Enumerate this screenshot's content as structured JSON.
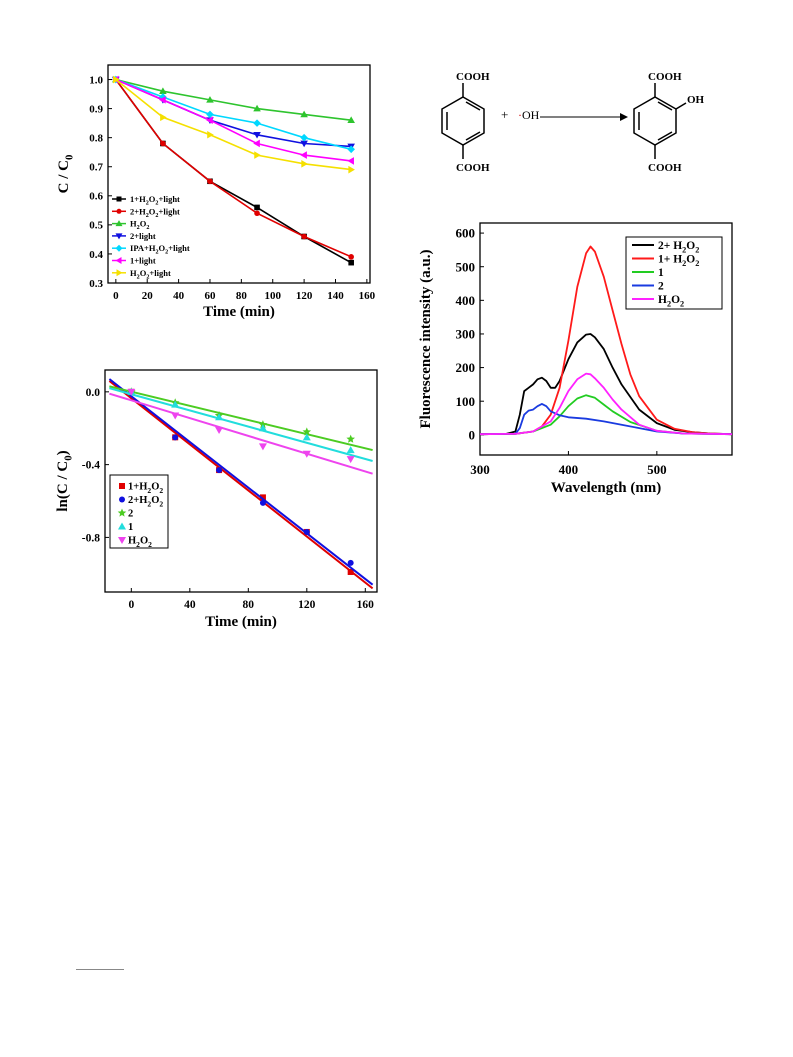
{
  "scheme": {
    "reactant_group_top": "COOH",
    "reactant_group_bottom": "COOH",
    "plus": "+",
    "radical": "·OH",
    "product_group_top": "COOH",
    "product_group_bottom": "COOH",
    "product_substituent": "OH",
    "colors": {
      "text": "#000000",
      "radical_dot": "#d00000"
    }
  },
  "chart_data": [
    {
      "id": "panelA",
      "type": "line",
      "title": "",
      "xlabel": "Time (min)",
      "ylabel": "C / C0",
      "xlim": [
        -5,
        162
      ],
      "ylim": [
        0.3,
        1.05
      ],
      "xticks": [
        0,
        20,
        40,
        60,
        80,
        100,
        120,
        140,
        160
      ],
      "yticks": [
        0.3,
        0.4,
        0.5,
        0.6,
        0.7,
        0.8,
        0.9,
        1.0
      ],
      "x": [
        0,
        30,
        60,
        90,
        120,
        150
      ],
      "legend_position": "bottom-left",
      "series": [
        {
          "name": "1+H2O2+light",
          "color": "#000000",
          "marker": "square",
          "values": [
            1.0,
            0.78,
            0.65,
            0.56,
            0.46,
            0.37
          ]
        },
        {
          "name": "2+H2O2+light",
          "color": "#e00000",
          "marker": "circle",
          "values": [
            1.0,
            0.78,
            0.65,
            0.54,
            0.46,
            0.39
          ]
        },
        {
          "name": "H2O2",
          "color": "#2ec42e",
          "marker": "triangle-up",
          "values": [
            1.0,
            0.96,
            0.93,
            0.9,
            0.88,
            0.86
          ]
        },
        {
          "name": "2+light",
          "color": "#1010e0",
          "marker": "triangle-down",
          "values": [
            1.0,
            0.93,
            0.86,
            0.81,
            0.78,
            0.77
          ]
        },
        {
          "name": "IPA+H2O2+light",
          "color": "#00d8ff",
          "marker": "diamond",
          "values": [
            1.0,
            0.94,
            0.88,
            0.85,
            0.8,
            0.76
          ]
        },
        {
          "name": "1+light",
          "color": "#ff00ff",
          "marker": "triangle-left",
          "values": [
            1.0,
            0.93,
            0.86,
            0.78,
            0.74,
            0.72
          ]
        },
        {
          "name": "H2O2+light",
          "color": "#f5e000",
          "marker": "triangle-right",
          "values": [
            1.0,
            0.87,
            0.81,
            0.74,
            0.71,
            0.69
          ]
        }
      ]
    },
    {
      "id": "panelB",
      "type": "scatter",
      "title": "",
      "xlabel": "Time (min)",
      "ylabel": "ln(C / C0)",
      "xlim": [
        -18,
        168
      ],
      "ylim": [
        -1.1,
        0.12
      ],
      "xticks": [
        0,
        40,
        80,
        120,
        160
      ],
      "yticks": [
        0.0,
        -0.4,
        -0.8
      ],
      "x": [
        0,
        30,
        60,
        90,
        120,
        150
      ],
      "legend_position": "bottom-left",
      "series": [
        {
          "name": "1+H2O2",
          "color": "#e00000",
          "marker": "square",
          "values": [
            0.0,
            -0.25,
            -0.43,
            -0.58,
            -0.77,
            -0.99
          ],
          "fit": [
            [
              -15,
              0.06
            ],
            [
              165,
              -1.08
            ]
          ]
        },
        {
          "name": "2+H2O2",
          "color": "#1010e0",
          "marker": "circle",
          "values": [
            0.0,
            -0.25,
            -0.43,
            -0.61,
            -0.77,
            -0.94
          ],
          "fit": [
            [
              -15,
              0.07
            ],
            [
              165,
              -1.06
            ]
          ]
        },
        {
          "name": "2",
          "color": "#4ccc22",
          "marker": "star",
          "values": [
            0.0,
            -0.06,
            -0.13,
            -0.18,
            -0.22,
            -0.26
          ],
          "fit": [
            [
              -15,
              0.03
            ],
            [
              165,
              -0.32
            ]
          ]
        },
        {
          "name": "1",
          "color": "#22dddd",
          "marker": "triangle-up",
          "values": [
            0.0,
            -0.07,
            -0.14,
            -0.2,
            -0.25,
            -0.32
          ],
          "fit": [
            [
              -15,
              0.02
            ],
            [
              165,
              -0.38
            ]
          ]
        },
        {
          "name": "H2O2",
          "color": "#ee44ee",
          "marker": "triangle-down",
          "values": [
            0.0,
            -0.13,
            -0.21,
            -0.3,
            -0.34,
            -0.37
          ],
          "fit": [
            [
              -15,
              -0.01
            ],
            [
              165,
              -0.45
            ]
          ]
        }
      ]
    },
    {
      "id": "panelC",
      "type": "line",
      "title": "",
      "xlabel": "Wavelength (nm)",
      "ylabel": "Fluorescence intensity (a.u.)",
      "xlim": [
        300,
        585
      ],
      "ylim": [
        -60,
        630
      ],
      "xticks": [
        300,
        400,
        500
      ],
      "yticks": [
        0,
        100,
        200,
        300,
        400,
        500,
        600
      ],
      "legend_position": "top-right",
      "series": [
        {
          "name": "2+ H2O2",
          "color": "#000000",
          "x": [
            300,
            330,
            340,
            345,
            350,
            355,
            360,
            365,
            370,
            375,
            380,
            385,
            390,
            400,
            410,
            420,
            425,
            430,
            440,
            450,
            460,
            480,
            500,
            520,
            540,
            560,
            585
          ],
          "values": [
            2,
            3,
            10,
            60,
            130,
            140,
            150,
            165,
            170,
            160,
            140,
            140,
            160,
            225,
            275,
            298,
            300,
            290,
            255,
            200,
            150,
            75,
            35,
            15,
            8,
            4,
            2
          ]
        },
        {
          "name": "1+ H2O2",
          "color": "#ff1a1a",
          "x": [
            300,
            340,
            360,
            370,
            380,
            390,
            400,
            410,
            420,
            425,
            430,
            440,
            450,
            460,
            470,
            480,
            500,
            520,
            540,
            560,
            585
          ],
          "values": [
            2,
            3,
            10,
            25,
            60,
            140,
            280,
            440,
            540,
            560,
            545,
            470,
            370,
            270,
            180,
            115,
            45,
            18,
            8,
            4,
            2
          ]
        },
        {
          "name": "1",
          "color": "#22cc22",
          "x": [
            300,
            340,
            360,
            380,
            390,
            400,
            410,
            420,
            430,
            440,
            450,
            470,
            500,
            530,
            585
          ],
          "values": [
            2,
            3,
            10,
            30,
            55,
            85,
            108,
            118,
            110,
            90,
            70,
            38,
            12,
            4,
            2
          ]
        },
        {
          "name": "2",
          "color": "#1a3be0",
          "x": [
            300,
            340,
            345,
            350,
            355,
            360,
            365,
            370,
            375,
            380,
            390,
            400,
            420,
            440,
            460,
            480,
            500,
            530,
            585
          ],
          "values": [
            2,
            3,
            20,
            60,
            72,
            75,
            85,
            92,
            85,
            70,
            58,
            52,
            48,
            40,
            30,
            20,
            10,
            4,
            2
          ]
        },
        {
          "name": "H2O2",
          "color": "#ff22ff",
          "x": [
            300,
            340,
            360,
            380,
            390,
            400,
            410,
            420,
            425,
            430,
            440,
            450,
            460,
            480,
            500,
            530,
            585
          ],
          "values": [
            2,
            3,
            10,
            40,
            80,
            130,
            165,
            182,
            180,
            168,
            140,
            105,
            75,
            30,
            12,
            4,
            2
          ]
        }
      ]
    }
  ]
}
